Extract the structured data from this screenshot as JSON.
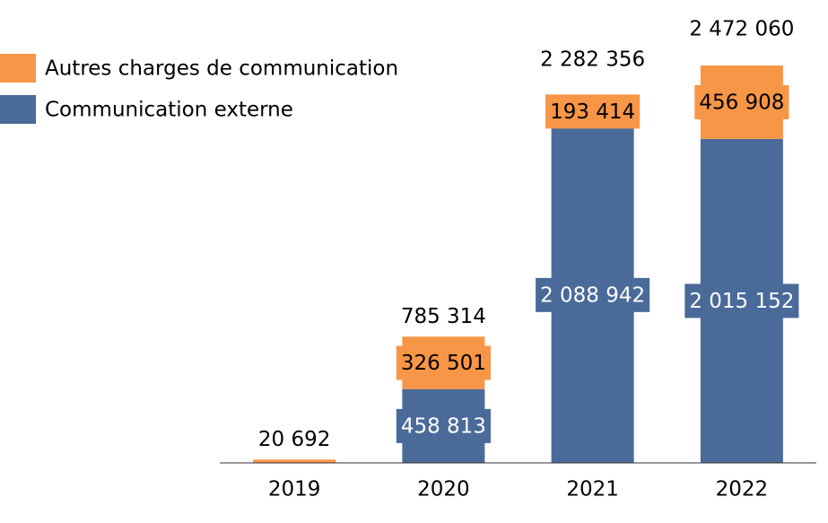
{
  "chart_data": {
    "type": "stacked_bar",
    "categories": [
      "2019",
      "2020",
      "2021",
      "2022"
    ],
    "series": [
      {
        "name": "Communication externe",
        "color": "#4a6a9a",
        "values": [
          null,
          458813,
          2088942,
          2015152
        ],
        "value_labels": [
          null,
          "458 813",
          "2 088 942",
          "2 015 152"
        ]
      },
      {
        "name": "Autres charges de communication",
        "color": "#f79646",
        "values": [
          20692,
          326501,
          193414,
          456908
        ],
        "value_labels": [
          null,
          "326 501",
          "193 414",
          "456 908"
        ]
      }
    ],
    "totals": [
      20692,
      785314,
      2282356,
      2472060
    ],
    "total_labels": [
      "20 692",
      "785 314",
      "2 282 356",
      "2 472 060"
    ],
    "ylim": [
      0,
      2500000
    ],
    "legend": "top-left"
  }
}
